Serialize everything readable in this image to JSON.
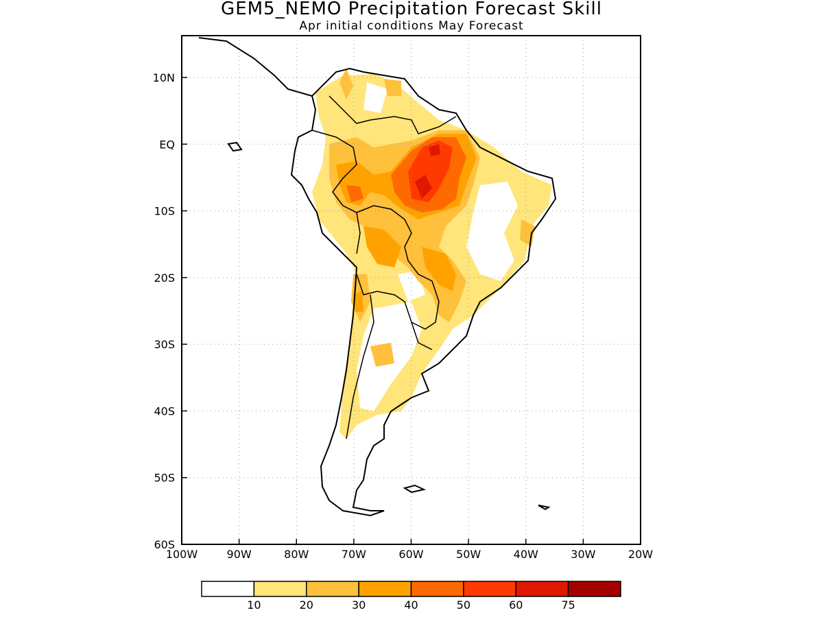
{
  "title": "GEM5_NEMO Precipitation Forecast Skill",
  "subtitle": "Apr initial conditions   May Forecast",
  "lon_ticks": [
    "100W",
    "90W",
    "80W",
    "70W",
    "60W",
    "50W",
    "40W",
    "30W",
    "20W"
  ],
  "lat_ticks": [
    "10N",
    "EQ",
    "10S",
    "20S",
    "30S",
    "40S",
    "50S",
    "60S"
  ],
  "colorbar": {
    "colors": [
      "#ffffff",
      "#ffe57a",
      "#ffc03c",
      "#ffa200",
      "#ff6a00",
      "#ff3a00",
      "#e01800",
      "#a50000"
    ],
    "labels": [
      "10",
      "20",
      "30",
      "40",
      "50",
      "60",
      "75"
    ]
  },
  "colors": {
    "border": "#000000",
    "grid": "#9a9a9a"
  }
}
